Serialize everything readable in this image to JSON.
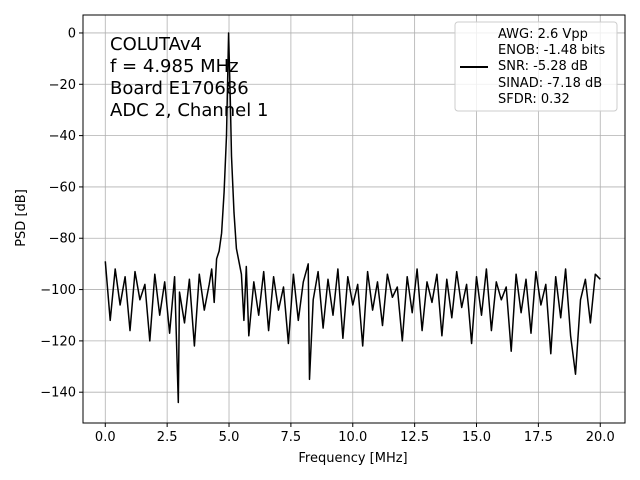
{
  "chart_data": {
    "type": "line",
    "xlabel": "Frequency [MHz]",
    "ylabel": "PSD [dB]",
    "xlim": [
      -0.9,
      21.0
    ],
    "ylim": [
      -152,
      7
    ],
    "xticks": [
      0.0,
      2.5,
      5.0,
      7.5,
      10.0,
      12.5,
      15.0,
      17.5,
      20.0
    ],
    "xtick_labels": [
      "0.0",
      "2.5",
      "5.0",
      "7.5",
      "10.0",
      "12.5",
      "15.0",
      "17.5",
      "20.0"
    ],
    "yticks": [
      0,
      -20,
      -40,
      -60,
      -80,
      -100,
      -120,
      -140
    ],
    "ytick_labels": [
      "0",
      "−20",
      "−40",
      "−60",
      "−80",
      "−100",
      "−120",
      "−140"
    ],
    "grid": true,
    "line_color": "#000000",
    "annotation_lines": [
      "COLUTAv4",
      "f = 4.985 MHz",
      "Board E170686",
      "ADC 2, Channel 1"
    ],
    "legend": {
      "placement": "top-right",
      "lines": [
        "AWG: 2.6 Vpp",
        "ENOB: -1.48 bits",
        "SNR: -5.28 dB",
        "SINAD: -7.18 dB",
        "SFDR: 0.32"
      ]
    },
    "series": [
      {
        "x": [
          0.0,
          0.2,
          0.4,
          0.6,
          0.8,
          1.0,
          1.2,
          1.4,
          1.6,
          1.8,
          2.0,
          2.2,
          2.4,
          2.6,
          2.8,
          2.95,
          3.0,
          3.2,
          3.4,
          3.6,
          3.8,
          4.0,
          4.2,
          4.3,
          4.4,
          4.5,
          4.6,
          4.7,
          4.8,
          4.9,
          4.985,
          5.05,
          5.1,
          5.2,
          5.3,
          5.4,
          5.5,
          5.6,
          5.7,
          5.8,
          6.0,
          6.2,
          6.4,
          6.6,
          6.8,
          7.0,
          7.2,
          7.4,
          7.6,
          7.8,
          8.0,
          8.2,
          8.25,
          8.4,
          8.6,
          8.8,
          9.0,
          9.2,
          9.4,
          9.6,
          9.8,
          10.0,
          10.2,
          10.4,
          10.6,
          10.8,
          11.0,
          11.2,
          11.4,
          11.6,
          11.8,
          12.0,
          12.2,
          12.4,
          12.6,
          12.8,
          13.0,
          13.2,
          13.4,
          13.6,
          13.8,
          14.0,
          14.2,
          14.4,
          14.6,
          14.8,
          15.0,
          15.2,
          15.4,
          15.6,
          15.8,
          16.0,
          16.2,
          16.4,
          16.6,
          16.8,
          17.0,
          17.2,
          17.4,
          17.6,
          17.8,
          18.0,
          18.2,
          18.4,
          18.6,
          18.8,
          19.0,
          19.2,
          19.4,
          19.6,
          19.8,
          20.0
        ],
        "y": [
          -89,
          -112,
          -92,
          -106,
          -95,
          -116,
          -93,
          -104,
          -98,
          -120,
          -94,
          -110,
          -97,
          -117,
          -95,
          -144,
          -101,
          -113,
          -96,
          -122,
          -94,
          -108,
          -98,
          -92,
          -105,
          -88,
          -85,
          -78,
          -62,
          -40,
          0,
          -26,
          -48,
          -70,
          -84,
          -89,
          -94,
          -112,
          -91,
          -118,
          -97,
          -110,
          -93,
          -116,
          -95,
          -108,
          -99,
          -121,
          -94,
          -112,
          -97,
          -90,
          -135,
          -104,
          -93,
          -115,
          -96,
          -110,
          -92,
          -119,
          -95,
          -106,
          -98,
          -122,
          -93,
          -108,
          -97,
          -114,
          -94,
          -103,
          -99,
          -120,
          -95,
          -109,
          -92,
          -116,
          -97,
          -105,
          -94,
          -118,
          -96,
          -111,
          -93,
          -107,
          -98,
          -121,
          -95,
          -110,
          -92,
          -116,
          -97,
          -104,
          -99,
          -124,
          -94,
          -109,
          -96,
          -117,
          -93,
          -106,
          -98,
          -125,
          -95,
          -111,
          -92,
          -118,
          -133,
          -104,
          -96,
          -113,
          -94,
          -96
        ]
      }
    ]
  }
}
